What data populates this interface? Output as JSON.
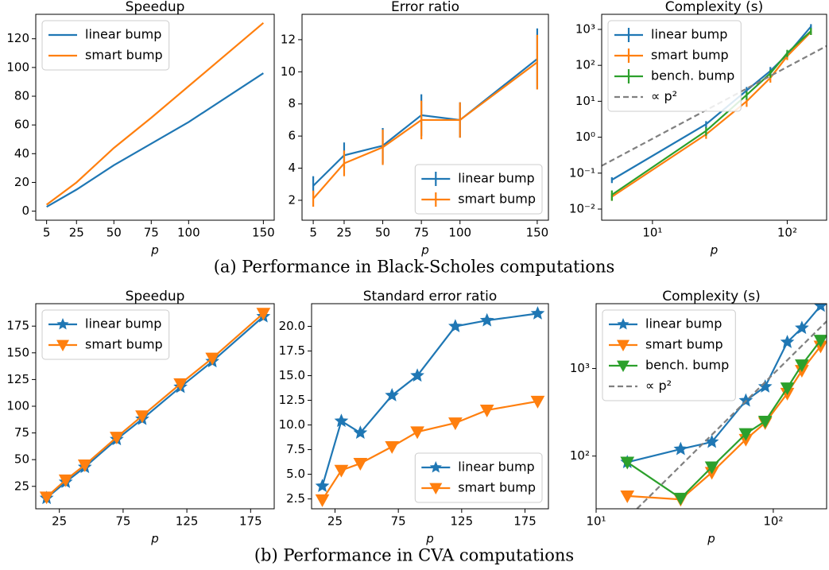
{
  "chart_data": [
    {
      "type": "line",
      "title": "Speedup",
      "xlabel": "p",
      "x": [
        5,
        25,
        50,
        75,
        100,
        150
      ],
      "xlim": [
        -2.25,
        157.25
      ],
      "ylim": [
        -6.3,
        137
      ],
      "xticks": [
        5,
        25,
        50,
        75,
        100,
        150
      ],
      "yticks": [
        0,
        20,
        40,
        60,
        80,
        100,
        120
      ],
      "legend": "upper left",
      "series": [
        {
          "name": "linear bump",
          "color": "#1f77b4",
          "values": [
            3,
            15,
            32,
            47,
            62,
            96
          ]
        },
        {
          "name": "smart bump",
          "color": "#ff7f0e",
          "values": [
            4.5,
            20,
            44,
            65,
            87,
            131
          ]
        }
      ]
    },
    {
      "type": "line",
      "title": "Error ratio",
      "xlabel": "p",
      "x": [
        5,
        25,
        50,
        75,
        100,
        150
      ],
      "xlim": [
        -2.25,
        157.25
      ],
      "ylim": [
        0.76,
        13.58
      ],
      "xticks": [
        5,
        25,
        50,
        75,
        100,
        150
      ],
      "yticks": [
        2,
        4,
        6,
        8,
        10,
        12
      ],
      "legend": "lower right",
      "series": [
        {
          "name": "linear bump",
          "color": "#1f77b4",
          "values": [
            2.9,
            4.8,
            5.4,
            7.3,
            7.0,
            10.8
          ],
          "errors": [
            0.6,
            0.8,
            1.1,
            1.3,
            1.1,
            1.9
          ]
        },
        {
          "name": "smart bump",
          "color": "#ff7f0e",
          "values": [
            2.1,
            4.3,
            5.3,
            7.0,
            7.0,
            10.6
          ],
          "errors": [
            0.5,
            0.8,
            1.1,
            1.2,
            1.1,
            1.7
          ]
        }
      ]
    },
    {
      "type": "line",
      "title": "Complexity (s)",
      "xlabel": "p",
      "x": [
        5,
        25,
        50,
        75,
        100,
        150
      ],
      "xscale": "log",
      "yscale": "log",
      "xlim": [
        4.2,
        196
      ],
      "ylim": [
        0.0049,
        2630
      ],
      "xticks": [
        {
          "value": 10,
          "label": "10¹"
        },
        {
          "value": 100,
          "label": "10²"
        }
      ],
      "yticks": [
        {
          "value": 0.01,
          "label": "10⁻²"
        },
        {
          "value": 0.1,
          "label": "10⁻¹"
        },
        {
          "value": 1,
          "label": "10⁰"
        },
        {
          "value": 10,
          "label": "10¹"
        },
        {
          "value": 100,
          "label": "10²"
        },
        {
          "value": 1000,
          "label": "10³"
        }
      ],
      "legend": "upper left",
      "series": [
        {
          "name": "linear bump",
          "color": "#1f77b4",
          "values": [
            0.065,
            2.3,
            20,
            70,
            200,
            1200
          ],
          "errors": [
            0.012,
            0.5,
            5,
            20,
            40,
            200
          ]
        },
        {
          "name": "smart bump",
          "color": "#ff7f0e",
          "values": [
            0.022,
            1.2,
            10,
            45,
            180,
            850
          ],
          "errors": [
            0.005,
            0.3,
            3,
            12,
            40,
            150
          ]
        },
        {
          "name": "bench. bump",
          "color": "#2ca02c",
          "values": [
            0.025,
            1.5,
            15,
            60,
            220,
            900
          ],
          "errors": [
            0.008,
            0.4,
            4,
            15,
            50,
            200
          ]
        },
        {
          "name": "∝ p²",
          "color": "#808080",
          "linestyle": "dashed",
          "x": [
            4.2,
            196
          ],
          "values": [
            0.16,
            346
          ]
        }
      ]
    },
    {
      "type": "line",
      "title": "Speedup",
      "xlabel": "p",
      "x": [
        15,
        30,
        45,
        70,
        90,
        120,
        145,
        185
      ],
      "xlim": [
        6.5,
        193.5
      ],
      "ylim": [
        4,
        196
      ],
      "xticks": [
        25,
        75,
        125,
        175
      ],
      "yticks": [
        25,
        50,
        75,
        100,
        125,
        150,
        175
      ],
      "legend": "upper left",
      "series": [
        {
          "name": "linear bump",
          "color": "#1f77b4",
          "marker": "star",
          "values": [
            14,
            29,
            43,
            69,
            88,
            118,
            142,
            184
          ]
        },
        {
          "name": "smart bump",
          "color": "#ff7f0e",
          "marker": "triangle-down",
          "values": [
            15,
            31,
            45,
            71,
            91,
            121,
            145,
            187
          ]
        }
      ]
    },
    {
      "type": "line",
      "title": "Standard error ratio",
      "xlabel": "p",
      "x": [
        15,
        30,
        45,
        70,
        90,
        120,
        145,
        185
      ],
      "xlim": [
        6.5,
        193.5
      ],
      "ylim": [
        1.5,
        22.3
      ],
      "xticks": [
        25,
        75,
        125,
        175
      ],
      "yticks": [
        2.5,
        {
          "value": 5,
          "label": "5.0"
        },
        7.5,
        {
          "value": 10,
          "label": "10.0"
        },
        12.5,
        {
          "value": 15,
          "label": "15.0"
        },
        17.5,
        {
          "value": 20,
          "label": "20.0"
        }
      ],
      "legend": "lower right",
      "series": [
        {
          "name": "linear bump",
          "color": "#1f77b4",
          "marker": "star",
          "values": [
            3.8,
            10.4,
            9.2,
            13.0,
            15.0,
            20.0,
            20.6,
            21.3
          ]
        },
        {
          "name": "smart bump",
          "color": "#ff7f0e",
          "marker": "triangle-down",
          "values": [
            2.4,
            5.4,
            6.1,
            7.8,
            9.3,
            10.2,
            11.5,
            12.4
          ]
        }
      ]
    },
    {
      "type": "line",
      "title": "Complexity (s)",
      "xlabel": "p",
      "x": [
        15,
        30,
        45,
        70,
        90,
        120,
        145,
        185
      ],
      "xscale": "log",
      "yscale": "log",
      "xlim": [
        10,
        200
      ],
      "ylim": [
        25,
        5500
      ],
      "xticks": [
        {
          "value": 10,
          "label": "10¹"
        },
        {
          "value": 100,
          "label": "10²"
        }
      ],
      "yticks": [
        {
          "value": 100,
          "label": "10²"
        },
        {
          "value": 1000,
          "label": "10³"
        }
      ],
      "legend": "upper left",
      "series": [
        {
          "name": "linear bump",
          "color": "#1f77b4",
          "marker": "star",
          "values": [
            85,
            120,
            145,
            430,
            620,
            2000,
            2900,
            5200
          ]
        },
        {
          "name": "smart bump",
          "color": "#ff7f0e",
          "marker": "triangle-down",
          "values": [
            35,
            32,
            65,
            155,
            240,
            520,
            950,
            1800
          ]
        },
        {
          "name": "bench. bump",
          "color": "#2ca02c",
          "marker": "triangle-down",
          "values": [
            85,
            33,
            75,
            180,
            250,
            600,
            1100,
            2100
          ]
        },
        {
          "name": "∝ p²",
          "color": "#808080",
          "linestyle": "dashed",
          "x": [
            17,
            200
          ],
          "values": [
            25,
            3460
          ]
        }
      ]
    }
  ],
  "captions": [
    "(a) Performance in Black-Scholes computations",
    "(b) Performance in CVA computations"
  ]
}
